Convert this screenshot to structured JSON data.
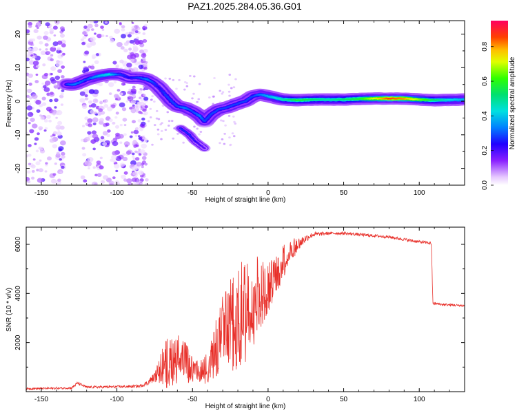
{
  "title": "PAZ1.2025.284.05.36.G01",
  "chart_data": [
    {
      "type": "heatmap",
      "name": "spectrogram",
      "xlabel": "Height of straight line (km)",
      "ylabel": "Frequency (Hz)",
      "xlim": [
        -160,
        130
      ],
      "ylim": [
        -25,
        24
      ],
      "xticks": [
        -150,
        -100,
        -50,
        0,
        50,
        100
      ],
      "yticks": [
        -20,
        -10,
        0,
        10,
        20
      ],
      "colorbar": {
        "label": "Normalized spectral amplitude",
        "range": [
          0,
          0.95
        ],
        "ticks": [
          "0.0",
          "0.2",
          "0.4",
          "0.6",
          "0.8"
        ],
        "tick_values": [
          0,
          0.2,
          0.4,
          0.6,
          0.8
        ]
      },
      "ridge_track": [
        [
          -133,
          5,
          0.3
        ],
        [
          -128,
          5,
          0.35
        ],
        [
          -120,
          6.5,
          0.3
        ],
        [
          -112,
          7.5,
          0.4
        ],
        [
          -105,
          8,
          0.45
        ],
        [
          -98,
          8,
          0.3
        ],
        [
          -92,
          7,
          0.25
        ],
        [
          -85,
          7,
          0.3
        ],
        [
          -80,
          6.5,
          0.35
        ],
        [
          -76,
          5.5,
          0.3
        ],
        [
          -72,
          4,
          0.25
        ],
        [
          -68,
          2,
          0.3
        ],
        [
          -64,
          0,
          0.3
        ],
        [
          -60,
          -1.5,
          0.3
        ],
        [
          -55,
          -2,
          0.35
        ],
        [
          -50,
          -3,
          0.3
        ],
        [
          -45,
          -4.5,
          0.35
        ],
        [
          -42,
          -6,
          0.3
        ],
        [
          -38,
          -4,
          0.3
        ],
        [
          -33,
          -2.5,
          0.3
        ],
        [
          -28,
          -2,
          0.3
        ],
        [
          -22,
          -1,
          0.3
        ],
        [
          -15,
          0,
          0.3
        ],
        [
          -10,
          1.5,
          0.3
        ],
        [
          -5,
          2,
          0.35
        ],
        [
          0,
          1.5,
          0.4
        ],
        [
          5,
          1,
          0.45
        ],
        [
          10,
          0.5,
          0.5
        ],
        [
          20,
          0.3,
          0.6
        ],
        [
          30,
          0.5,
          0.55
        ],
        [
          40,
          0.5,
          0.5
        ],
        [
          50,
          0.5,
          0.55
        ],
        [
          60,
          0.7,
          0.6
        ],
        [
          70,
          0.8,
          0.75
        ],
        [
          80,
          0.8,
          0.9
        ],
        [
          90,
          0.8,
          0.85
        ],
        [
          100,
          0.5,
          0.7
        ],
        [
          110,
          0.3,
          0.55
        ],
        [
          120,
          0.4,
          0.45
        ],
        [
          130,
          0.5,
          0.4
        ]
      ],
      "branch_track": [
        [
          -58,
          -8,
          0.3
        ],
        [
          -52,
          -10,
          0.3
        ],
        [
          -48,
          -12,
          0.25
        ],
        [
          -42,
          -14,
          0.2
        ]
      ]
    },
    {
      "type": "line",
      "name": "snr",
      "xlabel": "Height of straight line (km)",
      "ylabel": "SNR (10 * v/v)",
      "xlim": [
        -160,
        130
      ],
      "ylim": [
        0,
        6700
      ],
      "xticks": [
        -150,
        -100,
        -50,
        0,
        50,
        100
      ],
      "yticks": [
        2000,
        4000,
        6000
      ],
      "color": "#e8302a",
      "envelope": [
        [
          -160,
          120,
          40
        ],
        [
          -130,
          150,
          40
        ],
        [
          -126,
          350,
          60
        ],
        [
          -120,
          180,
          50
        ],
        [
          -100,
          200,
          50
        ],
        [
          -85,
          220,
          60
        ],
        [
          -80,
          350,
          100
        ],
        [
          -75,
          600,
          200
        ],
        [
          -70,
          900,
          700
        ],
        [
          -65,
          1100,
          1000
        ],
        [
          -60,
          1200,
          900
        ],
        [
          -55,
          1100,
          800
        ],
        [
          -50,
          800,
          500
        ],
        [
          -45,
          700,
          400
        ],
        [
          -40,
          900,
          600
        ],
        [
          -35,
          1500,
          1000
        ],
        [
          -30,
          2200,
          1400
        ],
        [
          -25,
          2500,
          1600
        ],
        [
          -20,
          2500,
          1800
        ],
        [
          -15,
          3200,
          2200
        ],
        [
          -10,
          3500,
          1800
        ],
        [
          -5,
          3700,
          1300
        ],
        [
          0,
          4100,
          900
        ],
        [
          5,
          4500,
          800
        ],
        [
          10,
          5200,
          600
        ],
        [
          15,
          5700,
          400
        ],
        [
          20,
          6000,
          300
        ],
        [
          25,
          6250,
          150
        ],
        [
          30,
          6400,
          100
        ],
        [
          40,
          6450,
          60
        ],
        [
          50,
          6450,
          60
        ],
        [
          60,
          6400,
          60
        ],
        [
          70,
          6350,
          60
        ],
        [
          80,
          6300,
          60
        ],
        [
          90,
          6200,
          60
        ],
        [
          100,
          6100,
          60
        ],
        [
          108,
          6050,
          60
        ],
        [
          109,
          3600,
          60
        ],
        [
          115,
          3550,
          50
        ],
        [
          130,
          3500,
          50
        ]
      ]
    }
  ]
}
